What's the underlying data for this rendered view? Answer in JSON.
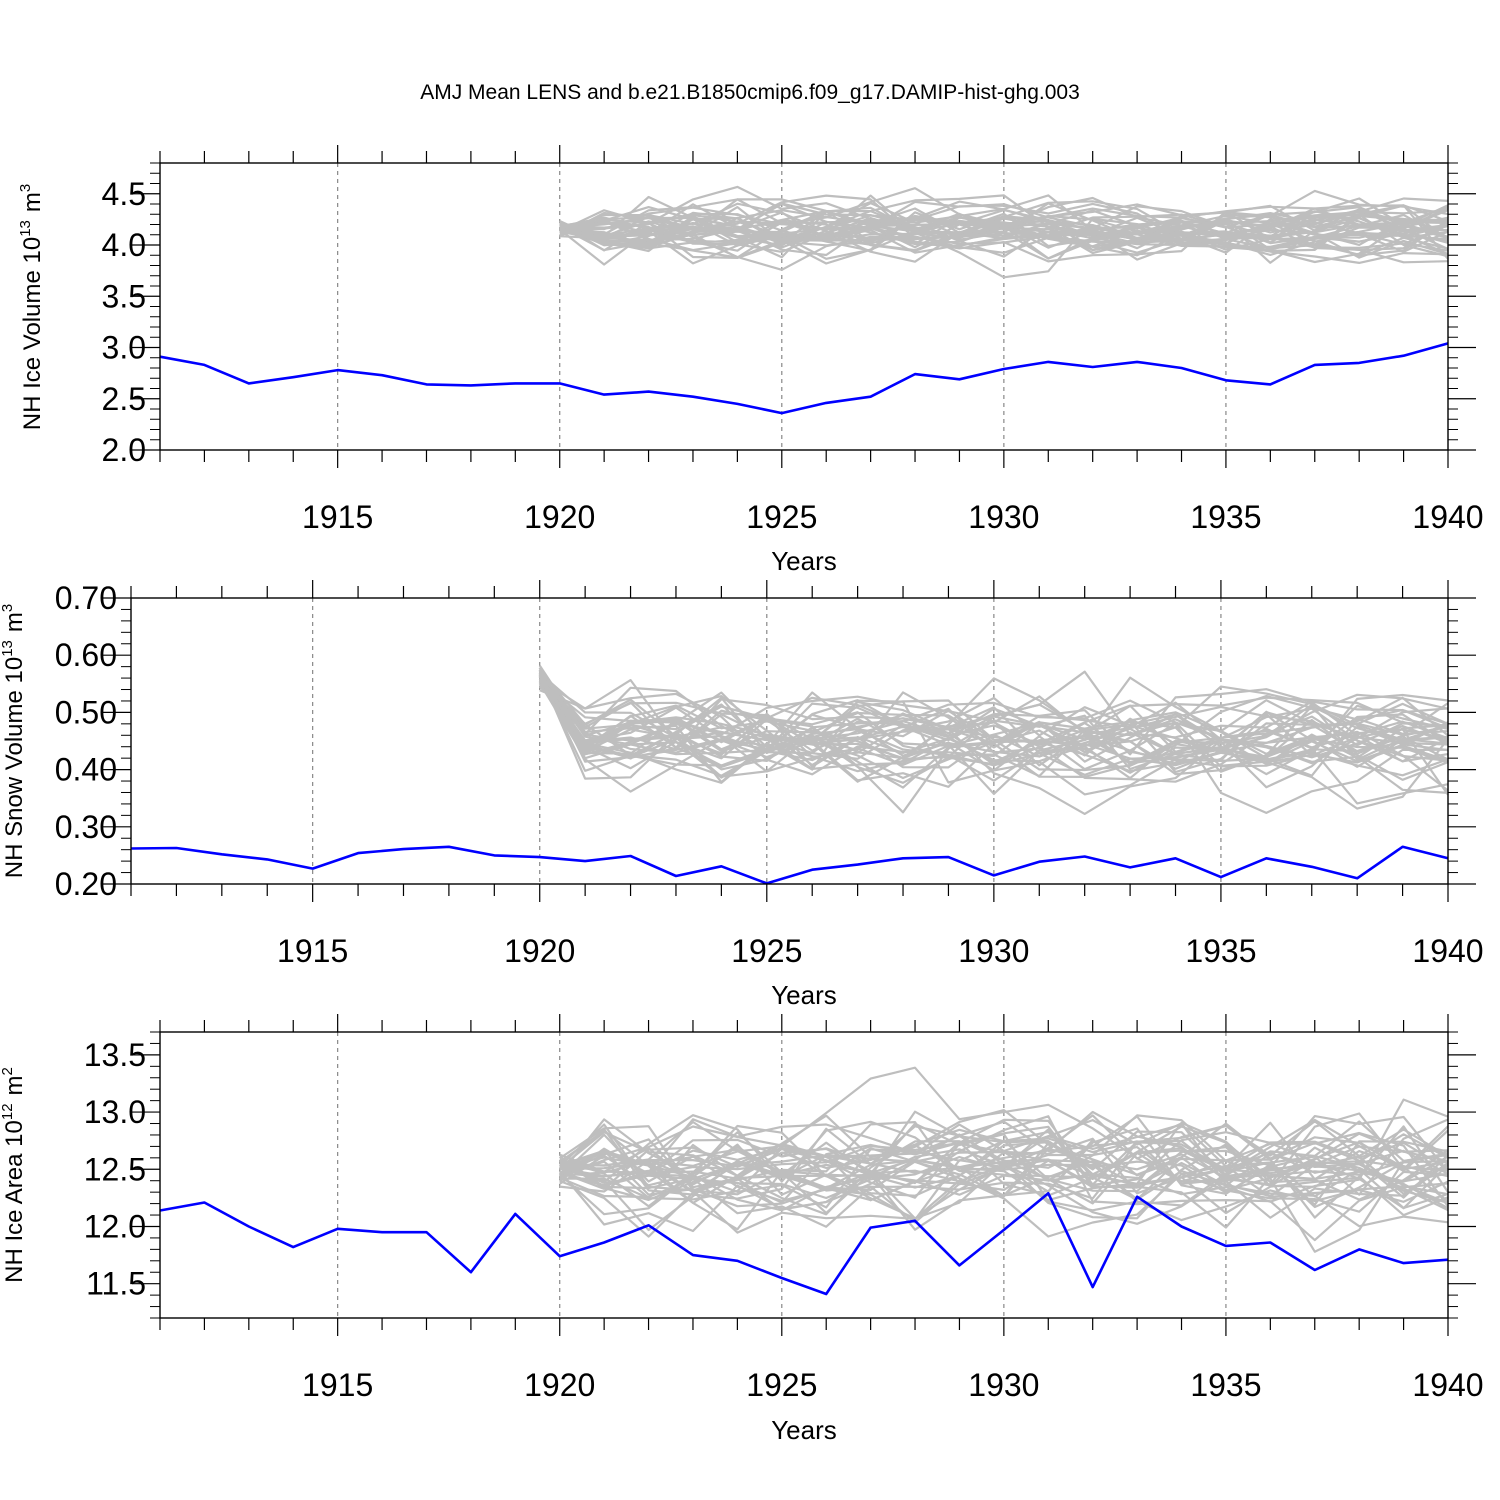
{
  "title": "AMJ Mean LENS and b.e21.B1850cmip6.f09_g17.DAMIP-hist-ghg.003",
  "colors": {
    "blue": "#0000ff",
    "gray": "#bebebe",
    "axis": "#000000",
    "grid": "#888888"
  },
  "chart_data": [
    {
      "type": "line",
      "ylabel": "NH Ice Volume 10",
      "ylabel_exp": "13",
      "ylabel_unit": "m",
      "ylabel_unit_exp": "3",
      "xlabel": "Years",
      "xlim": [
        1911,
        1940
      ],
      "ylim": [
        2.0,
        4.8
      ],
      "xticks": [
        "1915",
        "1920",
        "1925",
        "1930",
        "1935",
        "1940"
      ],
      "xtick_values": [
        1915,
        1920,
        1925,
        1930,
        1935,
        1940
      ],
      "yticks": [
        "2.0",
        "2.5",
        "3.0",
        "3.5",
        "4.0",
        "4.5"
      ],
      "ytick_values": [
        2.0,
        2.5,
        3.0,
        3.5,
        4.0,
        4.5
      ],
      "ens_start": 1920,
      "ens_center": 4.15,
      "ens_spread": 0.14,
      "ens_members": 40,
      "series": [
        {
          "name": "DAMIP-hist-ghg.003",
          "x": [
            1911,
            1912,
            1913,
            1914,
            1915,
            1916,
            1917,
            1918,
            1919,
            1920,
            1921,
            1922,
            1923,
            1924,
            1925,
            1926,
            1927,
            1928,
            1929,
            1930,
            1931,
            1932,
            1933,
            1934,
            1935,
            1936,
            1937,
            1938,
            1939,
            1940
          ],
          "values": [
            2.91,
            2.83,
            2.65,
            2.71,
            2.78,
            2.73,
            2.64,
            2.63,
            2.65,
            2.65,
            2.54,
            2.57,
            2.52,
            2.45,
            2.36,
            2.46,
            2.52,
            2.74,
            2.69,
            2.79,
            2.86,
            2.81,
            2.86,
            2.8,
            2.68,
            2.64,
            2.83,
            2.85,
            2.92,
            3.04
          ]
        }
      ]
    },
    {
      "type": "line",
      "ylabel": "NH Snow Volume 10",
      "ylabel_exp": "13",
      "ylabel_unit": "m",
      "ylabel_unit_exp": "3",
      "xlabel": "Years",
      "xlim": [
        1911,
        1940
      ],
      "ylim": [
        0.2,
        0.7
      ],
      "xticks": [
        "1915",
        "1920",
        "1925",
        "1930",
        "1935",
        "1940"
      ],
      "xtick_values": [
        1915,
        1920,
        1925,
        1930,
        1935,
        1940
      ],
      "yticks": [
        "0.20",
        "0.30",
        "0.40",
        "0.50",
        "0.60",
        "0.70"
      ],
      "ytick_values": [
        0.2,
        0.3,
        0.4,
        0.5,
        0.6,
        0.7
      ],
      "ens_start": 1920,
      "ens_start_value": 0.56,
      "ens_center": 0.455,
      "ens_spread": 0.04,
      "ens_members": 40,
      "series": [
        {
          "name": "DAMIP-hist-ghg.003",
          "x": [
            1911,
            1912,
            1913,
            1914,
            1915,
            1916,
            1917,
            1918,
            1919,
            1920,
            1921,
            1922,
            1923,
            1924,
            1925,
            1926,
            1927,
            1928,
            1929,
            1930,
            1931,
            1932,
            1933,
            1934,
            1935,
            1936,
            1937,
            1938,
            1939,
            1940
          ],
          "values": [
            0.262,
            0.263,
            0.252,
            0.243,
            0.227,
            0.254,
            0.261,
            0.265,
            0.25,
            0.247,
            0.24,
            0.249,
            0.214,
            0.231,
            0.201,
            0.225,
            0.234,
            0.245,
            0.247,
            0.215,
            0.239,
            0.248,
            0.229,
            0.245,
            0.212,
            0.245,
            0.23,
            0.21,
            0.265,
            0.245
          ]
        }
      ]
    },
    {
      "type": "line",
      "ylabel": "NH Ice Area 10",
      "ylabel_exp": "12",
      "ylabel_unit": "m",
      "ylabel_unit_exp": "2",
      "xlabel": "Years",
      "xlim": [
        1911,
        1940
      ],
      "ylim": [
        11.2,
        13.7
      ],
      "xticks": [
        "1915",
        "1920",
        "1925",
        "1930",
        "1935",
        "1940"
      ],
      "xtick_values": [
        1915,
        1920,
        1925,
        1930,
        1935,
        1940
      ],
      "yticks": [
        "11.5",
        "12.0",
        "12.5",
        "13.0",
        "13.5"
      ],
      "ytick_values": [
        11.5,
        12.0,
        12.5,
        13.0,
        13.5
      ],
      "ens_start": 1920,
      "ens_center": 12.5,
      "ens_spread": 0.24,
      "ens_members": 40,
      "series": [
        {
          "name": "DAMIP-hist-ghg.003",
          "x": [
            1911,
            1912,
            1913,
            1914,
            1915,
            1916,
            1917,
            1918,
            1919,
            1920,
            1921,
            1922,
            1923,
            1924,
            1925,
            1926,
            1927,
            1928,
            1929,
            1930,
            1931,
            1932,
            1933,
            1934,
            1935,
            1936,
            1937,
            1938,
            1939,
            1940
          ],
          "values": [
            12.14,
            12.21,
            12.0,
            11.82,
            11.98,
            11.95,
            11.95,
            11.6,
            12.11,
            11.74,
            11.86,
            12.01,
            11.75,
            11.7,
            11.55,
            11.41,
            11.99,
            12.05,
            11.66,
            11.97,
            12.29,
            11.47,
            12.26,
            12.0,
            11.83,
            11.86,
            11.62,
            11.8,
            11.68,
            11.71
          ]
        }
      ]
    }
  ]
}
